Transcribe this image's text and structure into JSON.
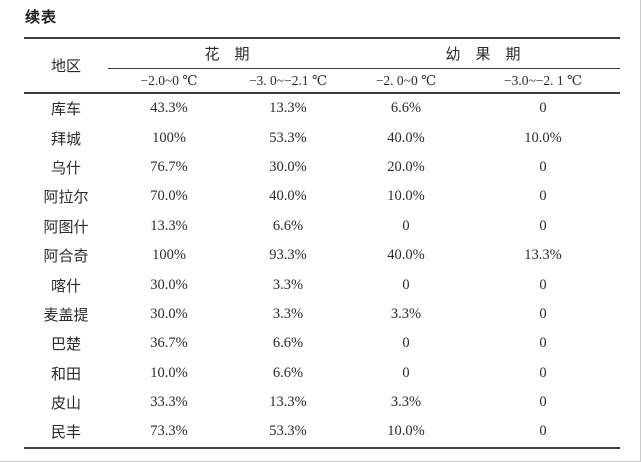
{
  "page": {
    "continuation_label": "续表"
  },
  "table": {
    "region_header": "地区",
    "group_headers": [
      {
        "label": "花　期"
      },
      {
        "label": "幼　果　期"
      }
    ],
    "sub_headers": [
      "−2.0~0 ℃",
      "−3. 0~−2.1 ℃",
      "−2. 0~0 ℃",
      "−3.0~−2. 1 ℃"
    ],
    "rows": [
      {
        "region": "库车",
        "values": [
          "43.3%",
          "13.3%",
          "6.6%",
          "0"
        ]
      },
      {
        "region": "拜城",
        "values": [
          "100%",
          "53.3%",
          "40.0%",
          "10.0%"
        ]
      },
      {
        "region": "乌什",
        "values": [
          "76.7%",
          "30.0%",
          "20.0%",
          "0"
        ]
      },
      {
        "region": "阿拉尔",
        "values": [
          "70.0%",
          "40.0%",
          "10.0%",
          "0"
        ]
      },
      {
        "region": "阿图什",
        "values": [
          "13.3%",
          "6.6%",
          "0",
          "0"
        ]
      },
      {
        "region": "阿合奇",
        "values": [
          "100%",
          "93.3%",
          "40.0%",
          "13.3%"
        ]
      },
      {
        "region": "喀什",
        "values": [
          "30.0%",
          "3.3%",
          "0",
          "0"
        ]
      },
      {
        "region": "麦盖提",
        "values": [
          "30.0%",
          "3.3%",
          "3.3%",
          "0"
        ]
      },
      {
        "region": "巴楚",
        "values": [
          "36.7%",
          "6.6%",
          "0",
          "0"
        ]
      },
      {
        "region": "和田",
        "values": [
          "10.0%",
          "6.6%",
          "0",
          "0"
        ]
      },
      {
        "region": "皮山",
        "values": [
          "33.3%",
          "13.3%",
          "3.3%",
          "0"
        ]
      },
      {
        "region": "民丰",
        "values": [
          "73.3%",
          "53.3%",
          "10.0%",
          "0"
        ]
      }
    ]
  }
}
